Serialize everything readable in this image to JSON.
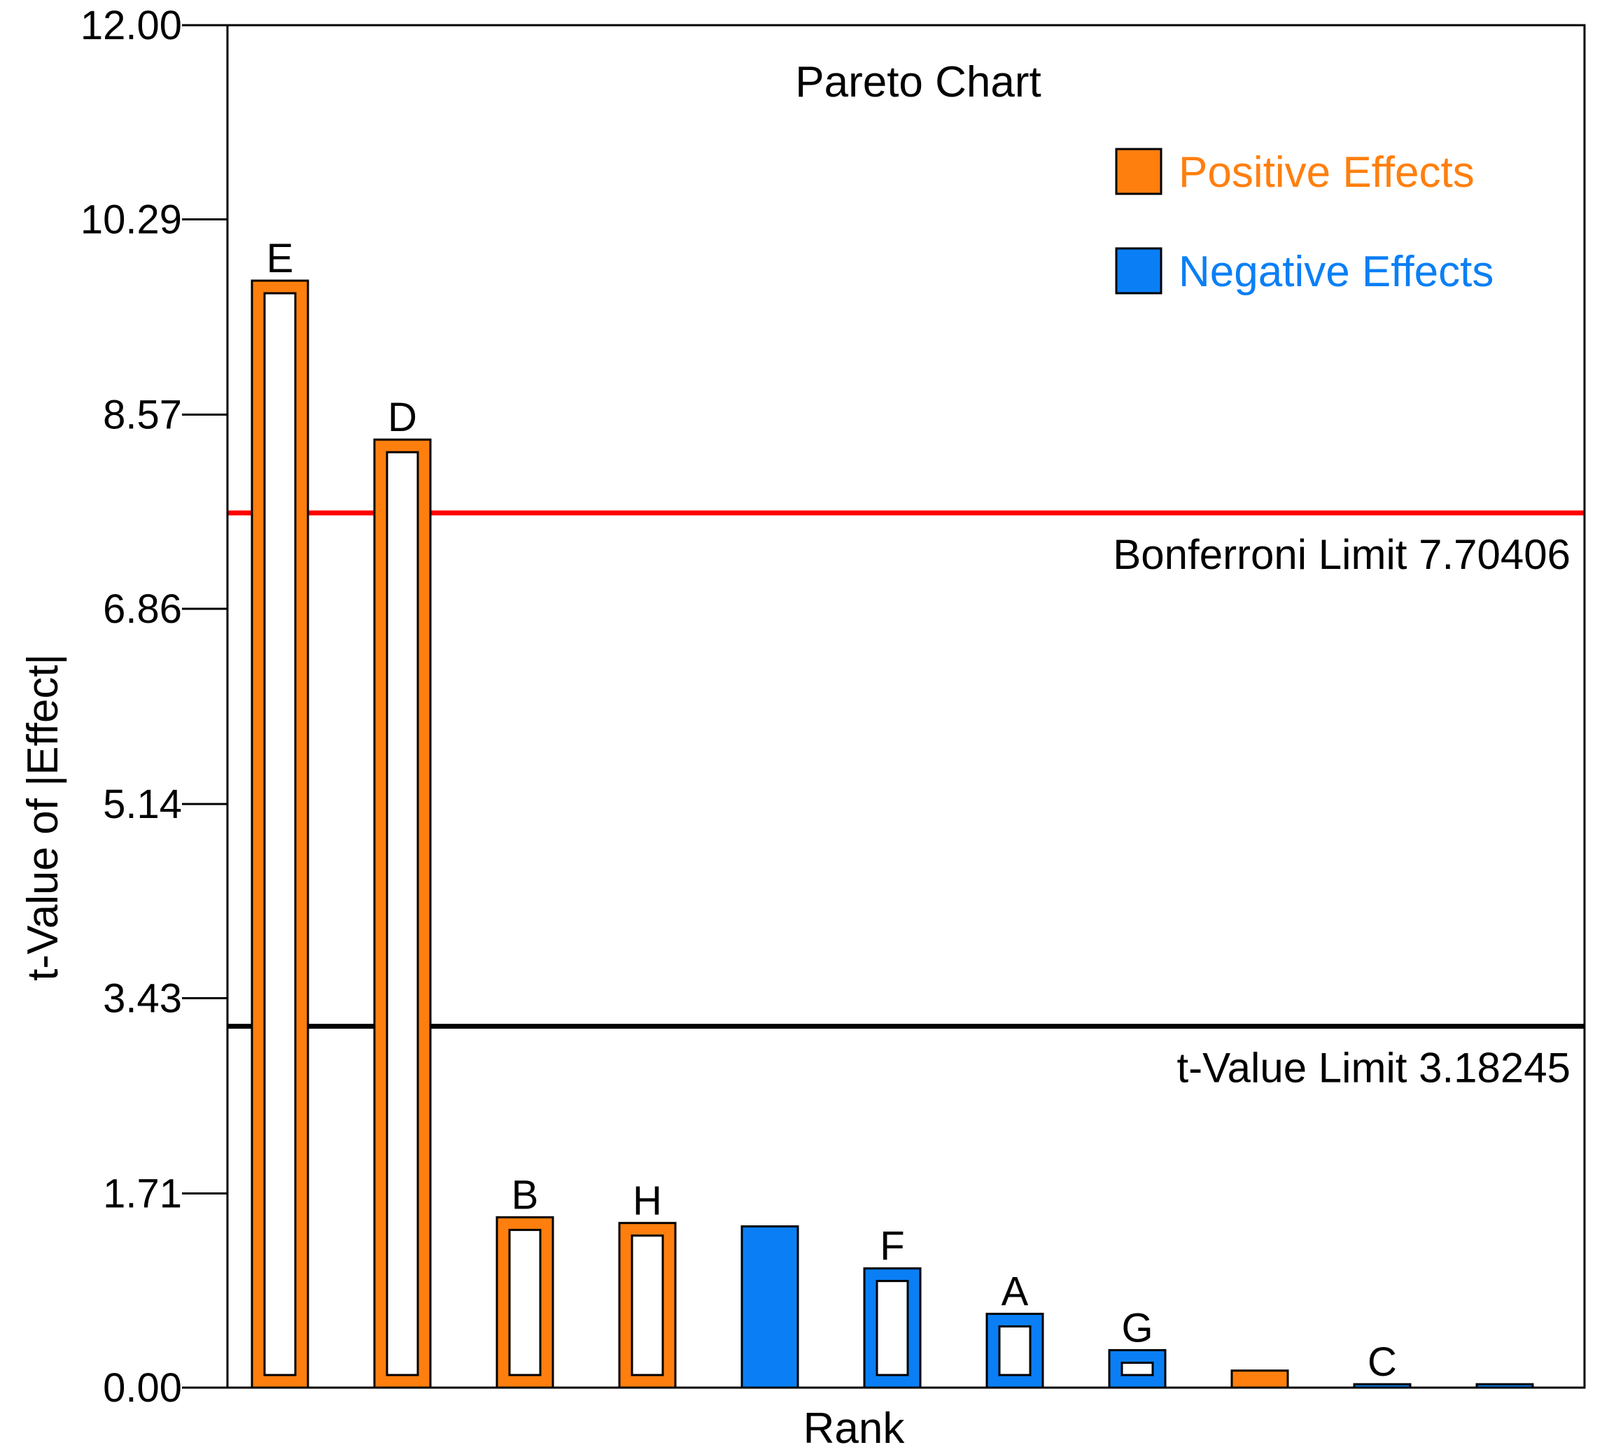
{
  "chart_data": {
    "type": "bar",
    "title": "Pareto Chart",
    "xlabel": "Rank",
    "ylabel": "t-Value of |Effect|",
    "yticks": [
      "0.00",
      "1.71",
      "3.43",
      "5.14",
      "6.86",
      "8.57",
      "10.29",
      "12.00"
    ],
    "ylim": [
      0,
      12
    ],
    "grid": false,
    "legend_position": "top-right",
    "legend": [
      {
        "label": "Positive Effects",
        "color": "#ff7f0e",
        "sign": "positive"
      },
      {
        "label": "Negative Effects",
        "color": "#0a7ff5",
        "sign": "negative"
      }
    ],
    "bars": [
      {
        "label": "E",
        "value": 9.75,
        "sign": "positive",
        "style": "outline"
      },
      {
        "label": "D",
        "value": 8.35,
        "sign": "positive",
        "style": "outline"
      },
      {
        "label": "B",
        "value": 1.5,
        "sign": "positive",
        "style": "outline"
      },
      {
        "label": "H",
        "value": 1.45,
        "sign": "positive",
        "style": "outline"
      },
      {
        "label": "",
        "value": 1.42,
        "sign": "negative",
        "style": "solid"
      },
      {
        "label": "F",
        "value": 1.05,
        "sign": "negative",
        "style": "outline"
      },
      {
        "label": "A",
        "value": 0.65,
        "sign": "negative",
        "style": "outline"
      },
      {
        "label": "G",
        "value": 0.33,
        "sign": "negative",
        "style": "outline"
      },
      {
        "label": "",
        "value": 0.15,
        "sign": "positive",
        "style": "solid"
      },
      {
        "label": "C",
        "value": 0.03,
        "sign": "negative",
        "style": "outline"
      },
      {
        "label": "",
        "value": 0.03,
        "sign": "negative",
        "style": "solid"
      }
    ],
    "limits": [
      {
        "name": "bonferroni",
        "label": "Bonferroni Limit 7.70406",
        "value": 7.70406,
        "color": "#ff0000"
      },
      {
        "name": "t-value",
        "label": "t-Value Limit 3.18245",
        "value": 3.18245,
        "color": "#000000"
      }
    ]
  }
}
